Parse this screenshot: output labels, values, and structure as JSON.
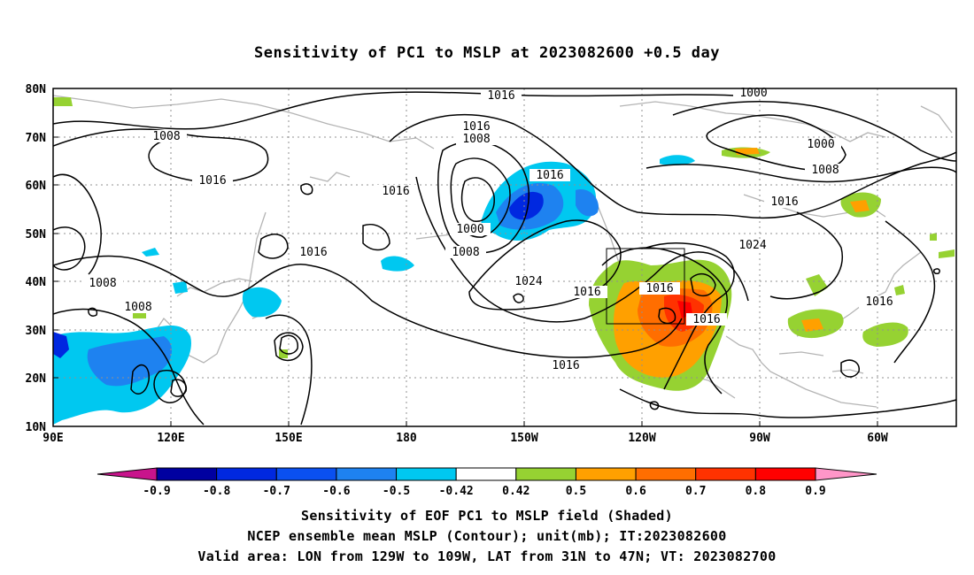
{
  "title": "Sensitivity of PC1 to MSLP at 2023082600 +0.5 day",
  "lat_labels": [
    "80N",
    "70N",
    "60N",
    "50N",
    "40N",
    "30N",
    "20N",
    "10N"
  ],
  "lon_labels": [
    "90E",
    "120E",
    "150E",
    "180",
    "150W",
    "120W",
    "90W",
    "60W"
  ],
  "contour_labels": {
    "c1016_top": "1016",
    "c1000_top": "1000",
    "c1008_asia": "1008",
    "c1016_asia": "1016",
    "c1016_pac_a": "1016",
    "c1016_pac_b": "1016",
    "c1008_pac": "1008",
    "c1016_gulf": "1016",
    "c1000_low": "1000",
    "c1008_low": "1008",
    "c1000_can": "1000",
    "c1008_can": "1008",
    "c1016_can": "1016",
    "c1024_can": "1024",
    "c1016_pac_c": "1016",
    "c1008_w": "1008",
    "c1008_w2": "1008",
    "c1024_high": "1024",
    "c1016_e": "1016",
    "c1016_box": "1016",
    "c1016_se": "1016",
    "c1016_sub": "1016",
    "c1016_atl": "1016"
  },
  "colorbar": {
    "labels": [
      "-0.9",
      "-0.8",
      "-0.7",
      "-0.6",
      "-0.5",
      "-0.42",
      "0.42",
      "0.5",
      "0.6",
      "0.7",
      "0.8",
      "0.9"
    ],
    "colors": [
      "#0000a0",
      "#0028e0",
      "#0a50f0",
      "#1e82f0",
      "#00c8f0",
      "#ffffff",
      "#96d232",
      "#ffa000",
      "#ff6e00",
      "#ff3200",
      "#ff0000"
    ],
    "low_end_color": "#c8148c",
    "high_end_color": "#ff96c8"
  },
  "captions": [
    "Sensitivity of EOF PC1 to MSLP field (Shaded)",
    "NCEP ensemble mean MSLP (Contour); unit(mb); IT:2023082600",
    "Valid area: LON from 129W to 109W, LAT from 31N to 47N; VT: 2023082700"
  ]
}
